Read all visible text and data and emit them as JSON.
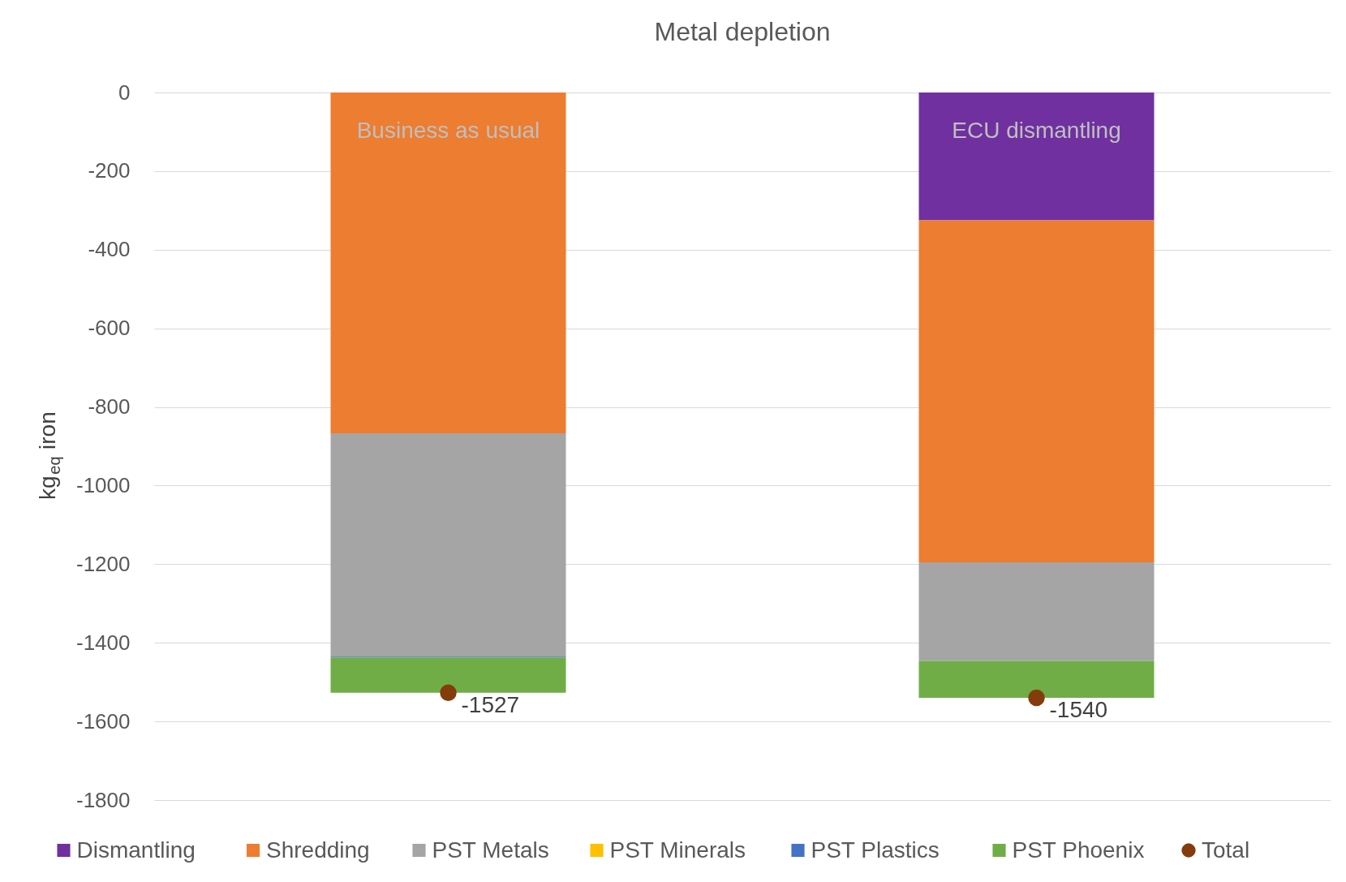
{
  "chart_data": {
    "type": "bar",
    "title": "Metal depletion",
    "ylabel": "kg$_{eq}$ iron",
    "categories": [
      "Business as usual",
      "ECU dismantling"
    ],
    "stacked": true,
    "series": [
      {
        "name": "Dismantling",
        "color": "#7030a0",
        "values": [
          0,
          -325
        ]
      },
      {
        "name": "Shredding",
        "color": "#ed7d31",
        "values": [
          -867,
          -870
        ]
      },
      {
        "name": "PST Metals",
        "color": "#a5a5a5",
        "values": [
          -568,
          -251
        ]
      },
      {
        "name": "PST Minerals",
        "color": "#ffc000",
        "values": [
          0,
          0
        ]
      },
      {
        "name": "PST Plastics",
        "color": "#4472c4",
        "values": [
          -2,
          0
        ]
      },
      {
        "name": "PST Phoenix",
        "color": "#70ad47",
        "values": [
          -90,
          -94
        ]
      },
      {
        "name": "Total",
        "type": "scatter",
        "color": "#843c0c",
        "marker": "circle",
        "values": [
          -1527,
          -1540
        ],
        "value_labels": [
          "-1527",
          "-1540"
        ]
      }
    ],
    "ylim": [
      -1800,
      0
    ],
    "yticks": [
      0,
      -200,
      -400,
      -600,
      -800,
      -1000,
      -1200,
      -1400,
      -1600,
      -1800
    ],
    "grid": "y",
    "legend": "bottom",
    "tick_labels": "y"
  }
}
